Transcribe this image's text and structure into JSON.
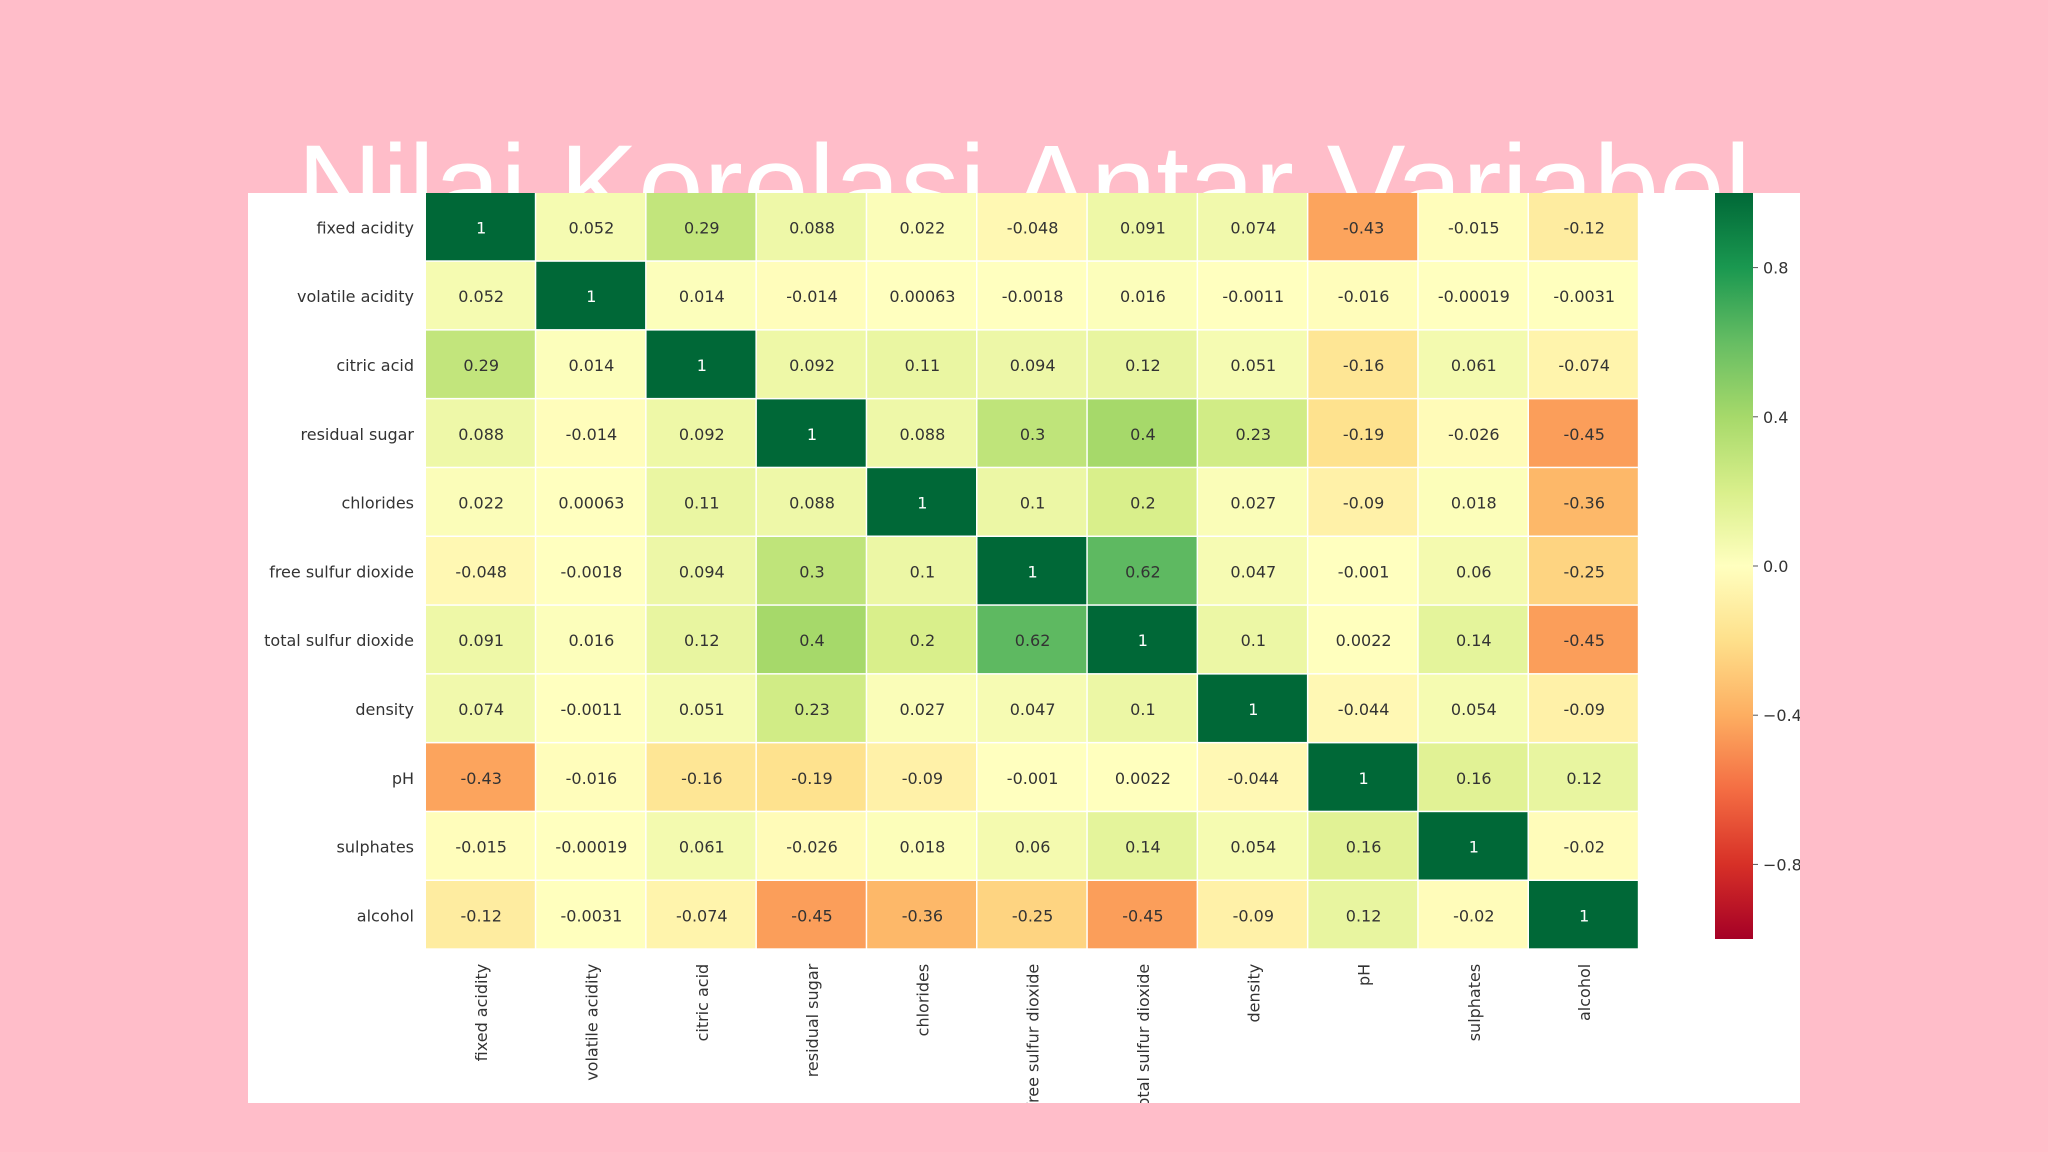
{
  "slide": {
    "title": "Nilai Korelasi Antar Variabel",
    "background_color": "#ffbdc9",
    "panel_color": "#ffffff"
  },
  "chart_data": {
    "type": "heatmap",
    "title": "",
    "xlabel": "",
    "ylabel": "",
    "colormap": "RdYlGn",
    "vmin": -1,
    "vmax": 1,
    "colorbar_ticks": [
      0.8,
      0.4,
      0.0,
      -0.4,
      -0.8
    ],
    "colorbar_tick_labels": [
      "0.8",
      "0.4",
      "0.0",
      "−0.4",
      "−0.8"
    ],
    "colorbar_position": "right",
    "row_labels": [
      "fixed acidity",
      "volatile acidity",
      "citric acid",
      "residual sugar",
      "chlorides",
      "free sulfur dioxide",
      "total sulfur dioxide",
      "density",
      "pH",
      "sulphates",
      "alcohol"
    ],
    "column_labels": [
      "fixed acidity",
      "volatile acidity",
      "citric acid",
      "residual sugar",
      "chlorides",
      "free sulfur dioxide",
      "total sulfur dioxide",
      "density",
      "pH",
      "sulphates",
      "alcohol"
    ],
    "values": [
      [
        1,
        0.052,
        0.29,
        0.088,
        0.022,
        -0.048,
        0.091,
        0.074,
        -0.43,
        -0.015,
        -0.12
      ],
      [
        0.052,
        1,
        0.014,
        -0.014,
        0.00063,
        -0.0018,
        0.016,
        -0.0011,
        -0.016,
        -0.00019,
        -0.0031
      ],
      [
        0.29,
        0.014,
        1,
        0.092,
        0.11,
        0.094,
        0.12,
        0.051,
        -0.16,
        0.061,
        -0.074
      ],
      [
        0.088,
        -0.014,
        0.092,
        1,
        0.088,
        0.3,
        0.4,
        0.23,
        -0.19,
        -0.026,
        -0.45
      ],
      [
        0.022,
        0.00063,
        0.11,
        0.088,
        1,
        0.1,
        0.2,
        0.027,
        -0.09,
        0.018,
        -0.36
      ],
      [
        -0.048,
        -0.0018,
        0.094,
        0.3,
        0.1,
        1,
        0.62,
        0.047,
        -0.001,
        0.06,
        -0.25
      ],
      [
        0.091,
        0.016,
        0.12,
        0.4,
        0.2,
        0.62,
        1,
        0.1,
        0.0022,
        0.14,
        -0.45
      ],
      [
        0.074,
        -0.0011,
        0.051,
        0.23,
        0.027,
        0.047,
        0.1,
        1,
        -0.044,
        0.054,
        -0.09
      ],
      [
        -0.43,
        -0.016,
        -0.16,
        -0.19,
        -0.09,
        -0.001,
        0.0022,
        -0.044,
        1,
        0.16,
        0.12
      ],
      [
        -0.015,
        -0.00019,
        0.061,
        -0.026,
        0.018,
        0.06,
        0.14,
        0.054,
        0.16,
        1,
        -0.02
      ],
      [
        -0.12,
        -0.0031,
        -0.074,
        -0.45,
        -0.36,
        -0.25,
        -0.45,
        -0.09,
        0.12,
        -0.02,
        1
      ]
    ],
    "annotations": [
      [
        "1",
        "0.052",
        "0.29",
        "0.088",
        "0.022",
        "-0.048",
        "0.091",
        "0.074",
        "-0.43",
        "-0.015",
        "-0.12"
      ],
      [
        "0.052",
        "1",
        "0.014",
        "-0.014",
        "0.00063",
        "-0.0018",
        "0.016",
        "-0.0011",
        "-0.016",
        "-0.00019",
        "-0.0031"
      ],
      [
        "0.29",
        "0.014",
        "1",
        "0.092",
        "0.11",
        "0.094",
        "0.12",
        "0.051",
        "-0.16",
        "0.061",
        "-0.074"
      ],
      [
        "0.088",
        "-0.014",
        "0.092",
        "1",
        "0.088",
        "0.3",
        "0.4",
        "0.23",
        "-0.19",
        "-0.026",
        "-0.45"
      ],
      [
        "0.022",
        "0.00063",
        "0.11",
        "0.088",
        "1",
        "0.1",
        "0.2",
        "0.027",
        "-0.09",
        "0.018",
        "-0.36"
      ],
      [
        "-0.048",
        "-0.0018",
        "0.094",
        "0.3",
        "0.1",
        "1",
        "0.62",
        "0.047",
        "-0.001",
        "0.06",
        "-0.25"
      ],
      [
        "0.091",
        "0.016",
        "0.12",
        "0.4",
        "0.2",
        "0.62",
        "1",
        "0.1",
        "0.0022",
        "0.14",
        "-0.45"
      ],
      [
        "0.074",
        "-0.0011",
        "0.051",
        "0.23",
        "0.027",
        "0.047",
        "0.1",
        "1",
        "-0.044",
        "0.054",
        "-0.09"
      ],
      [
        "-0.43",
        "-0.016",
        "-0.16",
        "-0.19",
        "-0.09",
        "-0.001",
        "0.0022",
        "-0.044",
        "1",
        "0.16",
        "0.12"
      ],
      [
        "-0.015",
        "-0.00019",
        "0.061",
        "-0.026",
        "0.018",
        "0.06",
        "0.14",
        "0.054",
        "0.16",
        "1",
        "-0.02"
      ],
      [
        "-0.12",
        "-0.0031",
        "-0.074",
        "-0.45",
        "-0.36",
        "-0.25",
        "-0.45",
        "-0.09",
        "0.12",
        "-0.02",
        "1"
      ]
    ]
  }
}
